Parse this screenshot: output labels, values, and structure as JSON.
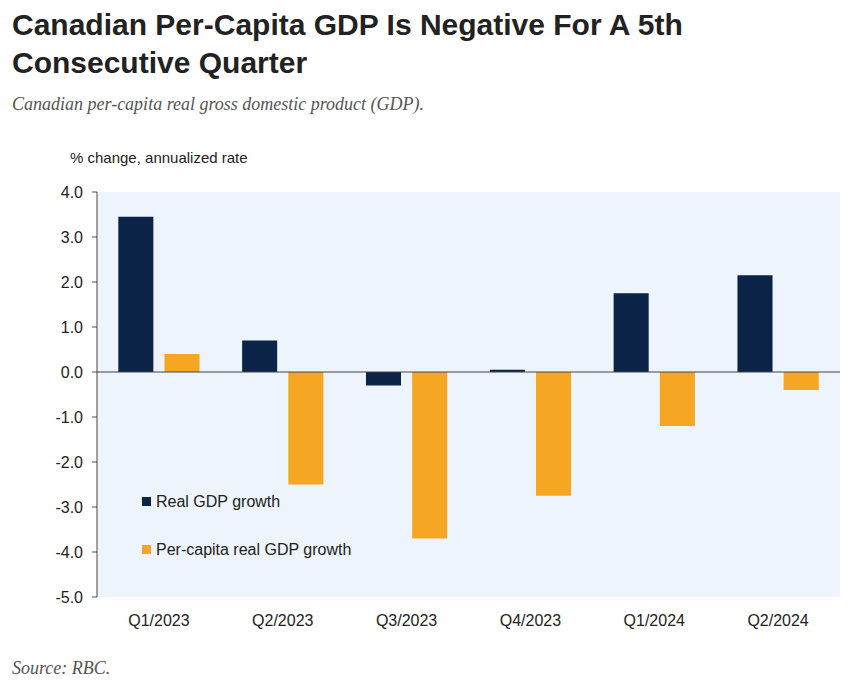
{
  "chart_data": {
    "type": "bar",
    "title": "Canadian Per-Capita GDP Is Negative For A 5th Consecutive Quarter",
    "subtitle": "Canadian per-capita real gross domestic product (GDP).",
    "y_label": "% change, annualized rate",
    "source": "Source: RBC.",
    "categories": [
      "Q1/2023",
      "Q2/2023",
      "Q3/2023",
      "Q4/2023",
      "Q1/2024",
      "Q2/2024"
    ],
    "series": [
      {
        "name": "Real GDP growth",
        "color": "#0b2347",
        "values": [
          3.45,
          0.7,
          -0.3,
          0.05,
          1.75,
          2.15
        ]
      },
      {
        "name": "Per-capita real GDP growth",
        "color": "#f5a623",
        "values": [
          0.4,
          -2.5,
          -3.7,
          -2.75,
          -1.2,
          -0.4
        ]
      }
    ],
    "ylim": [
      -5,
      4
    ],
    "yticks": [
      {
        "value": 4,
        "label": "4.0"
      },
      {
        "value": 3,
        "label": "3.0"
      },
      {
        "value": 2,
        "label": "2.0"
      },
      {
        "value": 1,
        "label": "1.0"
      },
      {
        "value": 0,
        "label": "0.0"
      },
      {
        "value": -1,
        "label": "-1.0"
      },
      {
        "value": -2,
        "label": "-2.0"
      },
      {
        "value": -3,
        "label": "-3.0"
      },
      {
        "value": -4,
        "label": "-4.0"
      },
      {
        "value": -5,
        "label": "-5.0"
      }
    ],
    "grid": false,
    "legend": "lower left"
  }
}
